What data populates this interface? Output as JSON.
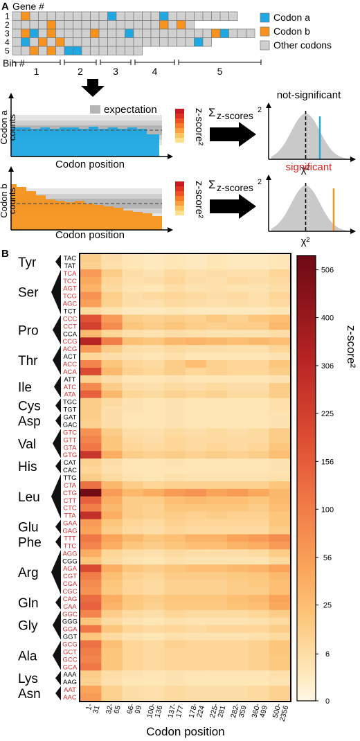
{
  "panel_a": {
    "label": "A",
    "gene_header": "Gene #",
    "gene_numbers": [
      "1",
      "2",
      "3",
      "4",
      "5"
    ],
    "bin_header": "Bin #",
    "bin_numbers": [
      "1",
      "2",
      "3",
      "4",
      "5"
    ],
    "legend": [
      {
        "label": "Codon a",
        "color": "#1ea7e1"
      },
      {
        "label": "Codon b",
        "color": "#f7931e"
      },
      {
        "label": "Other codons",
        "color": "#d0d0d0"
      }
    ],
    "gene_rows": [
      "ObOOOOOOOOOaOOOOOaOOOOOOOO",
      "OOOObOOOOOOOOOOOObObO",
      "ObaObOOOObOOOaOOOOOOOOObaOOO",
      "OaObObOOOOOOOOOOOOOOOaO",
      "OObObOaaOOOOOOO"
    ],
    "codon_a_plot": {
      "ylabel": "Codon a counts",
      "xlabel": "Codon position",
      "legend": "expectation"
    },
    "codon_b_plot": {
      "ylabel": "Codon b counts",
      "xlabel": "Codon position"
    },
    "colorbar_label": "z-score²",
    "sum_label": "Σ",
    "sum_sub": "z-scores",
    "sum_sup": "2",
    "result_a": {
      "label": "not-significant",
      "color": "#000000",
      "line_color": "#1ea7e1",
      "xlabel": "χ²"
    },
    "result_b": {
      "label": "significant",
      "color": "#e02020",
      "line_color": "#f7931e",
      "xlabel": "χ²"
    }
  },
  "panel_b": {
    "label": "B",
    "xlabel": "Codon position",
    "colorbar_label": "z-score²",
    "amino_groups": [
      {
        "aa": "Tyr",
        "start": 0,
        "end": 1
      },
      {
        "aa": "Ser",
        "start": 2,
        "end": 7
      },
      {
        "aa": "Pro",
        "start": 8,
        "end": 11
      },
      {
        "aa": "Thr",
        "start": 12,
        "end": 15
      },
      {
        "aa": "Ile",
        "start": 16,
        "end": 18
      },
      {
        "aa": "Cys",
        "start": 19,
        "end": 20
      },
      {
        "aa": "Asp",
        "start": 21,
        "end": 22
      },
      {
        "aa": "Val",
        "start": 23,
        "end": 26
      },
      {
        "aa": "His",
        "start": 27,
        "end": 28
      },
      {
        "aa": "Leu",
        "start": 29,
        "end": 34
      },
      {
        "aa": "Glu",
        "start": 35,
        "end": 36
      },
      {
        "aa": "Phe",
        "start": 37,
        "end": 38
      },
      {
        "aa": "Arg",
        "start": 39,
        "end": 44
      },
      {
        "aa": "Gln",
        "start": 45,
        "end": 46
      },
      {
        "aa": "Gly",
        "start": 47,
        "end": 50
      },
      {
        "aa": "Ala",
        "start": 51,
        "end": 54
      },
      {
        "aa": "Lys",
        "start": 55,
        "end": 56
      },
      {
        "aa": "Asn",
        "start": 57,
        "end": 58
      }
    ]
  },
  "chart_data": {
    "type": "heatmap",
    "xlabel": "Codon position",
    "x_categories": [
      "1-31",
      "32-65",
      "66-99",
      "100-136",
      "137-177",
      "178-224",
      "225-281",
      "282-359",
      "360-499",
      "500-2356"
    ],
    "y_categories": [
      "TAC",
      "TAT",
      "TCA",
      "TCC",
      "AGT",
      "TCG",
      "AGC",
      "TCT",
      "CCC",
      "CCT",
      "CCA",
      "CCG",
      "ACG",
      "ACT",
      "ACC",
      "ACA",
      "ATT",
      "ATC",
      "ATA",
      "TGC",
      "TGT",
      "GAT",
      "GAC",
      "GTC",
      "GTT",
      "GTA",
      "GTG",
      "CAT",
      "CAC",
      "TTG",
      "CTA",
      "CTG",
      "CTT",
      "CTC",
      "TTA",
      "GAA",
      "GAG",
      "TTT",
      "TTC",
      "AGG",
      "CGG",
      "AGA",
      "CGT",
      "CGA",
      "CGC",
      "CAG",
      "CAA",
      "GGC",
      "GGG",
      "GGA",
      "GGT",
      "GCG",
      "GCT",
      "GCC",
      "GCA",
      "AAA",
      "AAG",
      "AAT",
      "AAC"
    ],
    "y_label_colors": [
      "black",
      "black",
      "red",
      "red",
      "red",
      "red",
      "red",
      "black",
      "red",
      "red",
      "black",
      "red",
      "red",
      "black",
      "red",
      "red",
      "black",
      "red",
      "red",
      "black",
      "black",
      "black",
      "black",
      "red",
      "red",
      "red",
      "red",
      "black",
      "black",
      "black",
      "red",
      "red",
      "red",
      "red",
      "red",
      "red",
      "red",
      "red",
      "red",
      "red",
      "black",
      "red",
      "red",
      "red",
      "red",
      "red",
      "red",
      "red",
      "black",
      "red",
      "black",
      "red",
      "red",
      "red",
      "red",
      "black",
      "black",
      "red",
      "red"
    ],
    "colorbar": {
      "label": "z-score²",
      "ticks": [
        0,
        6,
        25,
        56,
        100,
        156,
        225,
        306,
        400,
        506
      ],
      "max": 540
    },
    "values": [
      [
        15,
        6,
        3,
        2,
        3,
        2,
        3,
        2,
        2,
        3
      ],
      [
        12,
        5,
        3,
        2,
        3,
        2,
        3,
        2,
        2,
        3
      ],
      [
        60,
        15,
        6,
        4,
        8,
        5,
        6,
        5,
        5,
        10
      ],
      [
        45,
        10,
        5,
        6,
        10,
        6,
        5,
        8,
        6,
        8
      ],
      [
        35,
        8,
        4,
        3,
        6,
        4,
        5,
        4,
        4,
        6
      ],
      [
        70,
        14,
        6,
        8,
        10,
        8,
        6,
        8,
        5,
        10
      ],
      [
        55,
        12,
        6,
        5,
        8,
        6,
        5,
        6,
        5,
        8
      ],
      [
        8,
        4,
        2,
        2,
        3,
        2,
        2,
        2,
        2,
        3
      ],
      [
        180,
        60,
        15,
        12,
        15,
        12,
        18,
        12,
        20,
        25
      ],
      [
        220,
        80,
        20,
        15,
        20,
        15,
        12,
        15,
        15,
        30
      ],
      [
        30,
        10,
        5,
        4,
        6,
        5,
        4,
        4,
        4,
        6
      ],
      [
        320,
        100,
        25,
        20,
        30,
        35,
        30,
        25,
        30,
        25
      ],
      [
        60,
        15,
        6,
        5,
        8,
        6,
        6,
        5,
        5,
        10
      ],
      [
        10,
        6,
        4,
        3,
        5,
        3,
        3,
        3,
        3,
        4
      ],
      [
        90,
        20,
        10,
        8,
        15,
        25,
        12,
        10,
        10,
        20
      ],
      [
        200,
        30,
        12,
        10,
        15,
        10,
        12,
        10,
        10,
        15
      ],
      [
        12,
        6,
        3,
        3,
        4,
        3,
        3,
        3,
        3,
        4
      ],
      [
        80,
        15,
        6,
        5,
        8,
        6,
        8,
        6,
        6,
        15
      ],
      [
        150,
        30,
        10,
        8,
        12,
        10,
        12,
        8,
        8,
        15
      ],
      [
        15,
        8,
        4,
        3,
        4,
        3,
        3,
        3,
        3,
        5
      ],
      [
        15,
        6,
        4,
        3,
        4,
        3,
        3,
        3,
        3,
        5
      ],
      [
        15,
        6,
        3,
        3,
        4,
        3,
        3,
        3,
        3,
        4
      ],
      [
        12,
        6,
        3,
        3,
        4,
        3,
        3,
        3,
        3,
        4
      ],
      [
        70,
        15,
        6,
        5,
        8,
        6,
        8,
        6,
        8,
        15
      ],
      [
        90,
        20,
        8,
        6,
        10,
        8,
        8,
        8,
        8,
        15
      ],
      [
        110,
        20,
        10,
        8,
        10,
        8,
        10,
        8,
        10,
        20
      ],
      [
        260,
        40,
        15,
        12,
        15,
        12,
        15,
        12,
        15,
        25
      ],
      [
        12,
        6,
        3,
        3,
        4,
        3,
        3,
        3,
        3,
        4
      ],
      [
        10,
        5,
        3,
        3,
        3,
        3,
        3,
        3,
        3,
        4
      ],
      [
        15,
        8,
        4,
        3,
        5,
        4,
        4,
        4,
        4,
        5
      ],
      [
        120,
        30,
        15,
        10,
        12,
        12,
        12,
        12,
        12,
        20
      ],
      [
        530,
        60,
        30,
        40,
        60,
        70,
        50,
        60,
        45,
        30
      ],
      [
        150,
        40,
        15,
        15,
        25,
        30,
        25,
        25,
        20,
        30
      ],
      [
        100,
        30,
        15,
        12,
        20,
        20,
        20,
        20,
        15,
        25
      ],
      [
        280,
        40,
        15,
        12,
        15,
        12,
        15,
        12,
        12,
        20
      ],
      [
        60,
        20,
        10,
        8,
        12,
        10,
        10,
        10,
        10,
        20
      ],
      [
        50,
        15,
        8,
        6,
        10,
        8,
        8,
        8,
        8,
        15
      ],
      [
        110,
        50,
        30,
        20,
        25,
        35,
        35,
        50,
        60,
        80
      ],
      [
        90,
        40,
        20,
        15,
        20,
        25,
        25,
        35,
        40,
        60
      ],
      [
        40,
        10,
        6,
        5,
        8,
        6,
        6,
        6,
        8,
        15
      ],
      [
        20,
        8,
        4,
        3,
        5,
        4,
        4,
        4,
        4,
        8
      ],
      [
        200,
        40,
        20,
        15,
        20,
        25,
        25,
        30,
        35,
        50
      ],
      [
        100,
        25,
        12,
        10,
        15,
        15,
        15,
        18,
        20,
        30
      ],
      [
        80,
        20,
        10,
        8,
        12,
        12,
        12,
        15,
        18,
        25
      ],
      [
        70,
        18,
        10,
        8,
        12,
        12,
        12,
        15,
        15,
        25
      ],
      [
        130,
        40,
        20,
        15,
        20,
        20,
        20,
        25,
        30,
        50
      ],
      [
        150,
        35,
        18,
        12,
        18,
        18,
        18,
        22,
        25,
        45
      ],
      [
        90,
        15,
        8,
        6,
        10,
        8,
        8,
        8,
        10,
        15
      ],
      [
        20,
        8,
        4,
        3,
        5,
        4,
        4,
        4,
        5,
        8
      ],
      [
        110,
        20,
        10,
        8,
        10,
        8,
        10,
        10,
        10,
        15
      ],
      [
        20,
        8,
        4,
        3,
        5,
        4,
        4,
        4,
        5,
        8
      ],
      [
        120,
        25,
        10,
        8,
        12,
        10,
        10,
        10,
        12,
        20
      ],
      [
        100,
        20,
        10,
        8,
        10,
        10,
        10,
        10,
        12,
        20
      ],
      [
        90,
        20,
        10,
        8,
        10,
        10,
        10,
        10,
        12,
        18
      ],
      [
        110,
        20,
        10,
        8,
        10,
        10,
        10,
        10,
        12,
        18
      ],
      [
        15,
        6,
        4,
        3,
        4,
        3,
        3,
        3,
        3,
        5
      ],
      [
        12,
        5,
        3,
        3,
        4,
        3,
        3,
        3,
        3,
        4
      ],
      [
        50,
        12,
        6,
        5,
        8,
        6,
        6,
        6,
        8,
        12
      ],
      [
        60,
        12,
        6,
        5,
        8,
        6,
        6,
        6,
        8,
        12
      ]
    ]
  }
}
